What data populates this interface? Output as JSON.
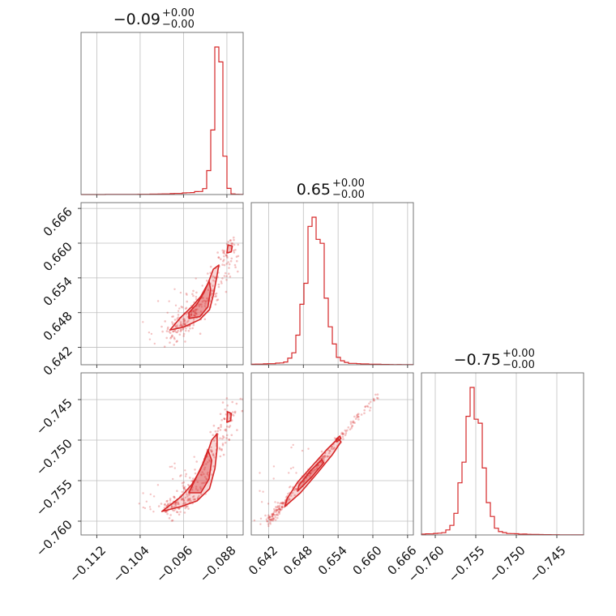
{
  "chart_data": {
    "type": "corner",
    "color": "#d62728",
    "parameters": [
      {
        "title": "−0.09",
        "err_plus": "+0.00",
        "err_minus": "−0.00",
        "range": [
          -0.1149,
          -0.085
        ],
        "ticks": [
          -0.112,
          -0.104,
          -0.096,
          -0.088
        ],
        "tick_labels": [
          "−0.112",
          "−0.104",
          "−0.096",
          "−0.088"
        ],
        "hist_peak": -0.0895,
        "hist_sigma": 0.0009,
        "hist_tail": 0.004
      },
      {
        "title": "0.65",
        "err_plus": "+0.00",
        "err_minus": "−0.00",
        "range": [
          0.639,
          0.667
        ],
        "ticks": [
          0.642,
          0.648,
          0.654,
          0.66,
          0.666
        ],
        "tick_labels": [
          "0.642",
          "0.648",
          "0.654",
          "0.660",
          "0.666"
        ],
        "hist_peak": 0.65,
        "hist_sigma": 0.0016,
        "hist_tail": 0.004
      },
      {
        "title": "−0.75",
        "err_plus": "+0.00",
        "err_minus": "−0.00",
        "range": [
          -0.7617,
          -0.7417
        ],
        "ticks": [
          -0.76,
          -0.755,
          -0.75,
          -0.745
        ],
        "tick_labels": [
          "−0.760",
          "−0.755",
          "−0.750",
          "−0.745"
        ],
        "hist_peak": -0.7553,
        "hist_sigma": 0.0011,
        "hist_tail": 0.003
      }
    ],
    "pairs": [
      {
        "row": 1,
        "col": 0,
        "ridge": [
          [
            -0.0982,
            0.6445
          ],
          [
            -0.096,
            0.6462
          ],
          [
            -0.094,
            0.648
          ],
          [
            -0.092,
            0.65
          ],
          [
            -0.09,
            0.653
          ],
          [
            -0.088,
            0.657
          ],
          [
            -0.0865,
            0.66
          ]
        ],
        "contour_outer": [
          [
            -0.0985,
            0.645
          ],
          [
            -0.096,
            0.6455
          ],
          [
            -0.093,
            0.6468
          ],
          [
            -0.0912,
            0.6485
          ],
          [
            -0.0905,
            0.651
          ],
          [
            -0.0898,
            0.6545
          ],
          [
            -0.0895,
            0.6562
          ],
          [
            -0.0905,
            0.6555
          ],
          [
            -0.0915,
            0.653
          ],
          [
            -0.0928,
            0.6508
          ],
          [
            -0.0945,
            0.649
          ],
          [
            -0.0965,
            0.6472
          ],
          [
            -0.0985,
            0.645
          ]
        ],
        "contour_inner": [
          [
            -0.095,
            0.647
          ],
          [
            -0.093,
            0.6473
          ],
          [
            -0.0915,
            0.649
          ],
          [
            -0.091,
            0.652
          ],
          [
            -0.0913,
            0.6535
          ],
          [
            -0.0922,
            0.6515
          ],
          [
            -0.0935,
            0.6495
          ],
          [
            -0.095,
            0.648
          ],
          [
            -0.095,
            0.647
          ]
        ],
        "contour_blob": [
          [
            -0.088,
            0.6583
          ],
          [
            -0.0872,
            0.6585
          ],
          [
            -0.087,
            0.6595
          ],
          [
            -0.0878,
            0.6597
          ],
          [
            -0.088,
            0.6583
          ]
        ]
      },
      {
        "row": 2,
        "col": 0,
        "ridge": [
          [
            -0.099,
            -0.7585
          ],
          [
            -0.096,
            -0.7575
          ],
          [
            -0.094,
            -0.756
          ],
          [
            -0.092,
            -0.754
          ],
          [
            -0.09,
            -0.751
          ],
          [
            -0.088,
            -0.748
          ],
          [
            -0.0865,
            -0.745
          ]
        ],
        "contour_outer": [
          [
            -0.1,
            -0.7588
          ],
          [
            -0.0965,
            -0.7582
          ],
          [
            -0.0935,
            -0.7575
          ],
          [
            -0.0912,
            -0.756
          ],
          [
            -0.0902,
            -0.7535
          ],
          [
            -0.0898,
            -0.751
          ],
          [
            -0.0898,
            -0.7492
          ],
          [
            -0.0908,
            -0.75
          ],
          [
            -0.0918,
            -0.752
          ],
          [
            -0.093,
            -0.7538
          ],
          [
            -0.0945,
            -0.7555
          ],
          [
            -0.0965,
            -0.757
          ],
          [
            -0.1,
            -0.7588
          ]
        ],
        "contour_inner": [
          [
            -0.095,
            -0.7565
          ],
          [
            -0.0928,
            -0.7565
          ],
          [
            -0.0913,
            -0.7548
          ],
          [
            -0.0908,
            -0.7525
          ],
          [
            -0.0915,
            -0.7512
          ],
          [
            -0.0925,
            -0.753
          ],
          [
            -0.0938,
            -0.7548
          ],
          [
            -0.095,
            -0.7565
          ]
        ],
        "contour_blob": [
          [
            -0.088,
            -0.7478
          ],
          [
            -0.0873,
            -0.7476
          ],
          [
            -0.0872,
            -0.7467
          ],
          [
            -0.0879,
            -0.7465
          ],
          [
            -0.088,
            -0.7478
          ]
        ]
      },
      {
        "row": 2,
        "col": 1,
        "ridge": [
          [
            0.642,
            -0.76
          ],
          [
            0.645,
            -0.7575
          ],
          [
            0.648,
            -0.755
          ],
          [
            0.651,
            -0.7525
          ],
          [
            0.654,
            -0.75
          ],
          [
            0.657,
            -0.7475
          ],
          [
            0.661,
            -0.7445
          ]
        ],
        "contour_outer": [
          [
            0.6448,
            -0.7582
          ],
          [
            0.6475,
            -0.7565
          ],
          [
            0.6505,
            -0.754
          ],
          [
            0.653,
            -0.7518
          ],
          [
            0.6545,
            -0.7502
          ],
          [
            0.654,
            -0.7498
          ],
          [
            0.652,
            -0.7512
          ],
          [
            0.6495,
            -0.7532
          ],
          [
            0.647,
            -0.7552
          ],
          [
            0.6452,
            -0.7572
          ],
          [
            0.6448,
            -0.7582
          ]
        ],
        "contour_inner": [
          [
            0.647,
            -0.7563
          ],
          [
            0.6495,
            -0.7545
          ],
          [
            0.6515,
            -0.7528
          ],
          [
            0.6512,
            -0.7524
          ],
          [
            0.6492,
            -0.7538
          ],
          [
            0.6472,
            -0.7556
          ],
          [
            0.647,
            -0.7563
          ]
        ],
        "contour_blob": [
          [
            0.6538,
            -0.7502
          ],
          [
            0.6545,
            -0.7498
          ],
          [
            0.6543,
            -0.7495
          ],
          [
            0.6536,
            -0.7499
          ],
          [
            0.6538,
            -0.7502
          ]
        ]
      }
    ]
  }
}
